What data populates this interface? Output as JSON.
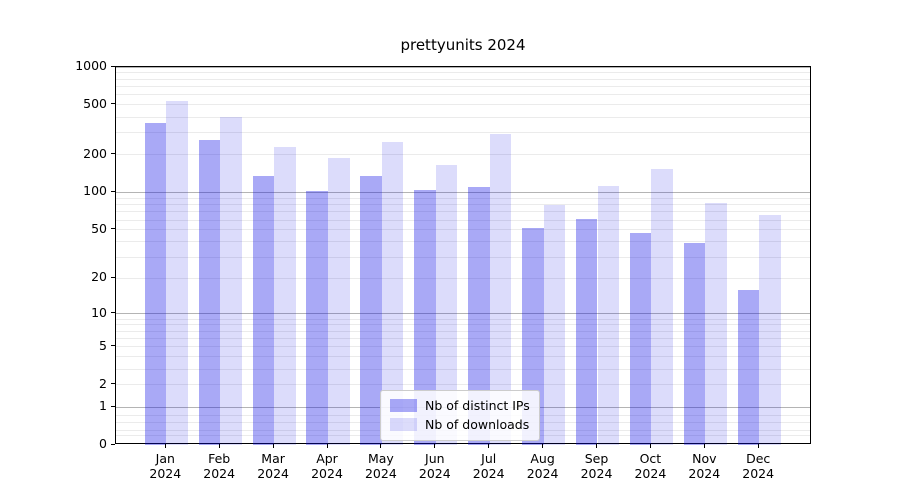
{
  "title": "prettyunits 2024",
  "colors": {
    "bar_distinct_ips": "#0a0ae659",
    "bar_downloads": "#0a0ae624",
    "grid_minor": "#ebebeb",
    "grid_major": "#b4b4b4",
    "axis": "#000000",
    "legend_border": "#cccccc"
  },
  "chart_data": {
    "type": "bar",
    "title": "prettyunits 2024",
    "y_scale": "log1p",
    "ylim": [
      0,
      1000
    ],
    "grid": true,
    "legend_position": "bottom-center",
    "xlabel": "",
    "ylabel": "",
    "categories": [
      "Jan 2024",
      "Feb 2024",
      "Mar 2024",
      "Apr 2024",
      "May 2024",
      "Jun 2024",
      "Jul 2024",
      "Aug 2024",
      "Sep 2024",
      "Oct 2024",
      "Nov 2024",
      "Dec 2024"
    ],
    "series": [
      {
        "name": "Nb of distinct IPs",
        "values": [
          360,
          265,
          135,
          102,
          135,
          104,
          110,
          52,
          61,
          47,
          39,
          16
        ]
      },
      {
        "name": "Nb of downloads",
        "values": [
          540,
          400,
          230,
          190,
          255,
          165,
          295,
          80,
          112,
          153,
          82,
          66
        ]
      }
    ],
    "y_ticks": [
      0,
      1,
      2,
      5,
      10,
      20,
      50,
      100,
      200,
      500,
      1000
    ],
    "y_major_gridlines": [
      1,
      10,
      100,
      1000
    ],
    "y_minor_gridlines": [
      0.2,
      0.3,
      0.5,
      0.7,
      2,
      3,
      4,
      5,
      6,
      7,
      8,
      9,
      20,
      30,
      40,
      50,
      60,
      70,
      80,
      90,
      200,
      300,
      400,
      500,
      600,
      700,
      800,
      900
    ]
  }
}
